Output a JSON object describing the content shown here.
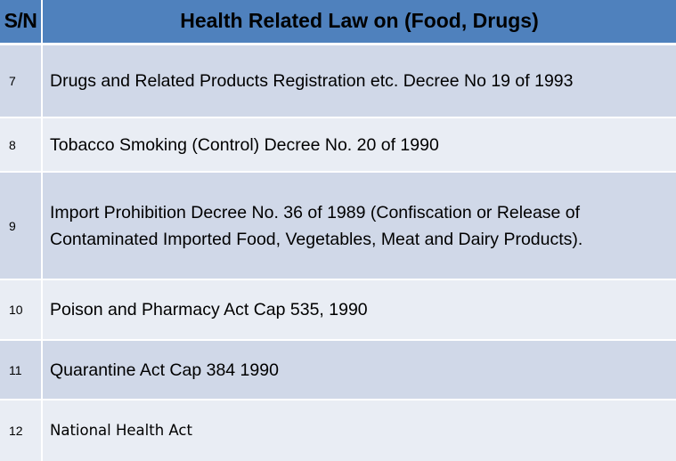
{
  "table": {
    "header": {
      "sn": "S/N",
      "law": "Health Related Law on (Food, Drugs)"
    },
    "rows": [
      {
        "sn": "7",
        "law": "Drugs and Related Products Registration etc. Decree No 19 of 1993"
      },
      {
        "sn": "8",
        "law": "Tobacco Smoking (Control) Decree No. 20 of 1990"
      },
      {
        "sn": "9",
        "law": "Import Prohibition Decree No. 36 of 1989 (Confiscation or Release of Contaminated Imported Food, Vegetables, Meat and Dairy Products)."
      },
      {
        "sn": "10",
        "law": "Poison and Pharmacy Act Cap 535, 1990"
      },
      {
        "sn": "11",
        "law": "Quarantine Act Cap 384 1990"
      },
      {
        "sn": "12",
        "law": "National Health Act"
      }
    ]
  },
  "colors": {
    "header_bg": "#4f81bd",
    "row_dark": "#d0d8e8",
    "row_light": "#e9edf4",
    "divider": "#ffffff"
  }
}
